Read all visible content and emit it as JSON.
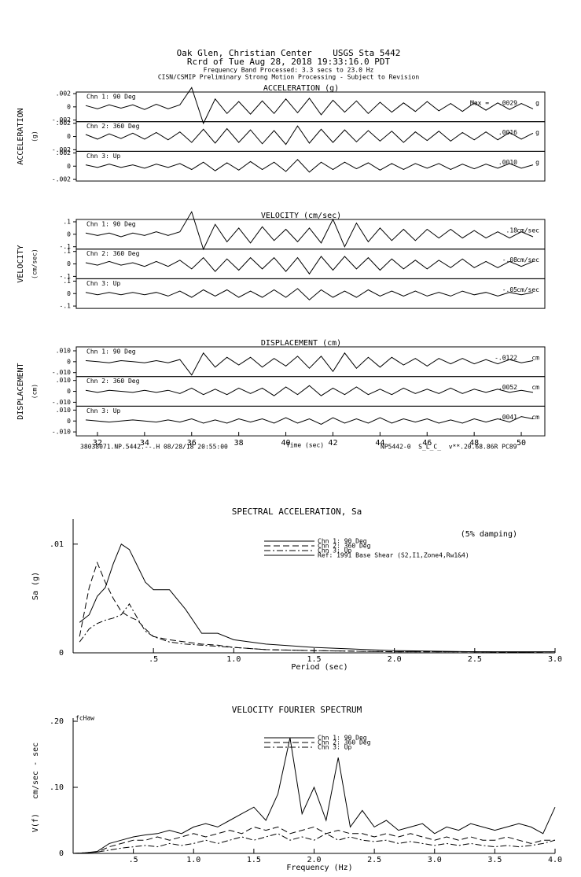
{
  "chart_data": [
    {
      "type": "waveform",
      "header": [
        "Oak Glen, Christian Center    USGS Sta 5442",
        "Rcrd of Tue Aug 28, 2018 19:33:16.0 PDT",
        "Frequency Band Processed: 3.3 secs to 23.0 Hz",
        "CISN/CSMIP Preliminary Strong Motion Processing - Subject to Revision"
      ],
      "x_label": "Time (sec)",
      "footer_left": "38038071.NP.5442.--.H 08/28/18 20:55:00",
      "footer_right": "NP5442-0  S_L_C_  v**.20.68.86R PC89",
      "max_label": "Max =",
      "xlim": [
        31.1,
        51
      ],
      "xticks": [
        32,
        34,
        36,
        38,
        40,
        42,
        44,
        46,
        48,
        50
      ],
      "x": [
        31.5,
        32,
        32.5,
        33,
        33.5,
        34,
        34.5,
        35,
        35.5,
        36,
        36.5,
        37,
        37.5,
        38,
        38.5,
        39,
        39.5,
        40,
        40.5,
        41,
        41.5,
        42,
        42.5,
        43,
        43.5,
        44,
        44.5,
        45,
        45.5,
        46,
        46.5,
        47,
        47.5,
        48,
        48.5,
        49,
        49.5,
        50,
        50.5
      ],
      "sections": [
        {
          "title": "ACCELERATION (g)",
          "y_label": "ACCELERATION",
          "y_unit": "(g)",
          "ylim": [
            -0.00224,
            0.00224
          ],
          "yticks": [
            {
              "value": 0.002,
              "label": ".002"
            },
            0,
            {
              "value": -0.002,
              "label": "-.002"
            }
          ],
          "panels": [
            {
              "name": "Chn 1: 90 Deg",
              "peak": 0.0029,
              "peak_label": ".0029",
              "units": "g",
              "values": [
                0.0002,
                -0.0003,
                0.0003,
                -0.0002,
                0.0003,
                -0.0004,
                0.0004,
                -0.0003,
                0.0003,
                0.0029,
                -0.0025,
                0.0012,
                -0.001,
                0.0008,
                -0.0011,
                0.0009,
                -0.001,
                0.0012,
                -0.0009,
                0.0013,
                -0.0012,
                0.001,
                -0.0008,
                0.0009,
                -0.001,
                0.0007,
                -0.0008,
                0.0006,
                -0.0007,
                0.0008,
                -0.0006,
                0.0005,
                -0.0007,
                0.0006,
                -0.0005,
                0.0006,
                -0.0004,
                0.0005,
                -0.0003
              ]
            },
            {
              "name": "Chn 2: 360 Deg",
              "peak": 0.0016,
              "peak_label": ".0016",
              "units": "g",
              "values": [
                0.0003,
                -0.0004,
                0.0004,
                -0.0003,
                0.0005,
                -0.0004,
                0.0006,
                -0.0005,
                0.0007,
                -0.0009,
                0.0011,
                -0.001,
                0.0012,
                -0.0009,
                0.001,
                -0.0011,
                0.0009,
                -0.0012,
                0.0016,
                -0.001,
                0.0011,
                -0.0009,
                0.001,
                -0.0008,
                0.0009,
                -0.0007,
                0.0008,
                -0.0009,
                0.0007,
                -0.0006,
                0.0008,
                -0.0007,
                0.0006,
                -0.0005,
                0.0007,
                -0.0005,
                0.0006,
                -0.0004,
                0.0005
              ]
            },
            {
              "name": "Chn 3: Up",
              "peak": 0.001,
              "peak_label": ".0010",
              "units": "g",
              "values": [
                0.0002,
                -0.0002,
                0.0003,
                -0.0002,
                0.0002,
                -0.0003,
                0.0003,
                -0.0002,
                0.0004,
                -0.0005,
                0.0006,
                -0.0007,
                0.0005,
                -0.0006,
                0.0007,
                -0.0005,
                0.0006,
                -0.0008,
                0.001,
                -0.0009,
                0.0006,
                -0.0005,
                0.0006,
                -0.0004,
                0.0005,
                -0.0006,
                0.0004,
                -0.0005,
                0.0004,
                -0.0003,
                0.0004,
                -0.0005,
                0.0003,
                -0.0004,
                0.0003,
                -0.0003,
                0.0004,
                -0.0003,
                0.0002
              ]
            }
          ]
        },
        {
          "title": "VELOCITY (cm/sec)",
          "y_label": "VELOCITY",
          "y_unit": "(cm/sec)",
          "ylim": [
            -0.119,
            0.119
          ],
          "yticks": [
            {
              "value": 0.1,
              "label": ".1"
            },
            0,
            {
              "value": -0.1,
              "label": "-.1"
            }
          ],
          "panels": [
            {
              "name": "Chn 1: 90 Deg",
              "peak": 0.18,
              "peak_label": ".18",
              "units": "cm/sec",
              "values": [
                0.01,
                -0.01,
                0.01,
                -0.02,
                0.01,
                -0.01,
                0.02,
                -0.01,
                0.02,
                0.18,
                -0.12,
                0.08,
                -0.06,
                0.05,
                -0.07,
                0.06,
                -0.05,
                0.04,
                -0.06,
                0.05,
                -0.07,
                0.12,
                -0.1,
                0.09,
                -0.06,
                0.05,
                -0.05,
                0.04,
                -0.05,
                0.04,
                -0.03,
                0.04,
                -0.03,
                0.03,
                -0.03,
                0.02,
                -0.03,
                0.02,
                -0.02
              ]
            },
            {
              "name": "Chn 2: 360 Deg",
              "peak": -0.08,
              "peak_label": "-.08",
              "units": "cm/sec",
              "values": [
                0.01,
                -0.01,
                0.02,
                -0.01,
                0.01,
                -0.02,
                0.02,
                -0.02,
                0.03,
                -0.04,
                0.05,
                -0.06,
                0.04,
                -0.05,
                0.05,
                -0.04,
                0.05,
                -0.06,
                0.05,
                -0.08,
                0.06,
                -0.05,
                0.06,
                -0.04,
                0.05,
                -0.05,
                0.04,
                -0.04,
                0.03,
                -0.04,
                0.03,
                -0.03,
                0.04,
                -0.03,
                0.02,
                -0.03,
                0.02,
                -0.02,
                0.02
              ]
            },
            {
              "name": "Chn 3: Up",
              "peak": -0.05,
              "peak_label": "-.05",
              "units": "cm/sec",
              "values": [
                0.01,
                -0.01,
                0.01,
                -0.01,
                0.01,
                -0.01,
                0.01,
                -0.02,
                0.02,
                -0.03,
                0.03,
                -0.02,
                0.03,
                -0.03,
                0.02,
                -0.03,
                0.03,
                -0.03,
                0.04,
                -0.05,
                0.03,
                -0.03,
                0.02,
                -0.03,
                0.03,
                -0.02,
                0.02,
                -0.02,
                0.02,
                -0.02,
                0.01,
                -0.02,
                0.02,
                -0.01,
                0.01,
                -0.02,
                0.01,
                -0.01,
                0.01
              ]
            }
          ]
        },
        {
          "title": "DISPLACEMENT (cm)",
          "y_label": "DISPLACEMENT",
          "y_unit": "(cm)",
          "ylim": [
            -0.0136,
            0.0136
          ],
          "yticks": [
            {
              "value": 0.01,
              "label": ".010"
            },
            0,
            {
              "value": -0.01,
              "label": "-.010"
            }
          ],
          "panels": [
            {
              "name": "Chn 1: 90 Deg",
              "peak": -0.0122,
              "peak_label": "-.0122",
              "units": "cm",
              "values": [
                0.001,
                0,
                -0.001,
                0.001,
                0,
                -0.001,
                0.001,
                -0.001,
                0.002,
                -0.0122,
                0.008,
                -0.005,
                0.004,
                -0.003,
                0.004,
                -0.005,
                0.003,
                -0.004,
                0.005,
                -0.006,
                0.005,
                -0.009,
                0.008,
                -0.006,
                0.004,
                -0.005,
                0.004,
                -0.003,
                0.003,
                -0.004,
                0.003,
                -0.002,
                0.003,
                -0.002,
                0.002,
                -0.002,
                0.002,
                -0.001,
                0.001
              ]
            },
            {
              "name": "Chn 2: 360 Deg",
              "peak": 0.0052,
              "peak_label": ".0052",
              "units": "cm",
              "values": [
                0.001,
                -0.001,
                0.001,
                0,
                -0.001,
                0.001,
                -0.001,
                0.001,
                -0.002,
                0.003,
                -0.003,
                0.002,
                -0.003,
                0.003,
                -0.002,
                0.003,
                -0.004,
                0.004,
                -0.003,
                0.0052,
                -0.004,
                0.003,
                -0.003,
                0.004,
                -0.003,
                0.002,
                -0.003,
                0.003,
                -0.002,
                0.002,
                -0.002,
                0.003,
                -0.002,
                0.002,
                -0.001,
                0.002,
                -0.001,
                0.001,
                -0.001
              ]
            },
            {
              "name": "Chn 3: Up",
              "peak": 0.0041,
              "peak_label": ".0041",
              "units": "cm",
              "values": [
                0.001,
                0,
                -0.001,
                0,
                0.001,
                0,
                -0.001,
                0.001,
                -0.001,
                0.002,
                -0.002,
                0.001,
                -0.002,
                0.002,
                -0.001,
                0.002,
                -0.002,
                0.003,
                -0.002,
                0.002,
                -0.003,
                0.003,
                -0.002,
                0.002,
                -0.002,
                0.003,
                -0.002,
                0.002,
                -0.001,
                0.002,
                -0.002,
                0.001,
                -0.002,
                0.002,
                -0.001,
                0.002,
                -0.001,
                0.0041,
                0.002
              ]
            }
          ]
        }
      ]
    },
    {
      "type": "line",
      "title": "SPECTRAL ACCELERATION, Sa",
      "x_label": "Period (sec)",
      "y_label": "Sa (g)",
      "annotation": "(5% damping)",
      "legend": "upper center",
      "xlim": [
        0,
        3
      ],
      "ylim": [
        0,
        0.0123
      ],
      "xticks": [
        {
          "value": 0.5,
          "label": ".5"
        },
        {
          "value": 1,
          "label": "1.0"
        },
        {
          "value": 1.5,
          "label": "1.5"
        },
        {
          "value": 2,
          "label": "2.0"
        },
        {
          "value": 2.5,
          "label": "2.5"
        },
        {
          "value": 3,
          "label": "3.0"
        }
      ],
      "yticks": [
        0,
        {
          "value": 0.01,
          "label": ".01"
        }
      ],
      "x": [
        0.04,
        0.1,
        0.15,
        0.2,
        0.25,
        0.3,
        0.35,
        0.4,
        0.45,
        0.5,
        0.6,
        0.7,
        0.8,
        0.9,
        1.0,
        1.2,
        1.5,
        2.0,
        2.5,
        3.0
      ],
      "series": [
        {
          "name": "Chn 1: 90 Deg",
          "color": "#000000",
          "style": "solid",
          "values": [
            0.0028,
            0.0035,
            0.0052,
            0.006,
            0.0082,
            0.01,
            0.0095,
            0.008,
            0.0065,
            0.0058,
            0.0058,
            0.004,
            0.0018,
            0.0018,
            0.0012,
            0.0008,
            0.0005,
            0.0002,
            0.0001,
            0.0001
          ]
        },
        {
          "name": "Chn 2: 360 Deg",
          "color": "#000000",
          "style": "dashed",
          "values": [
            0.0015,
            0.006,
            0.0083,
            0.0065,
            0.005,
            0.0038,
            0.0033,
            0.003,
            0.0022,
            0.0015,
            0.0012,
            0.001,
            0.0008,
            0.0007,
            0.0005,
            0.0003,
            0.0002,
            0.0001,
            0.0001,
            0
          ]
        },
        {
          "name": "Chn 3: Up",
          "color": "#000000",
          "style": "dashdot",
          "values": [
            0.001,
            0.0022,
            0.0027,
            0.003,
            0.0032,
            0.0035,
            0.0045,
            0.0032,
            0.002,
            0.0015,
            0.001,
            0.0008,
            0.0007,
            0.0006,
            0.0005,
            0.0003,
            0.0002,
            0.0001,
            0.0001,
            0
          ]
        }
      ],
      "reference": {
        "name": "Ref: 1991 Base Shear (S2,I1,Zone4,Rw1&4)",
        "color": "#000000",
        "style": "solid"
      }
    },
    {
      "type": "line",
      "title": "VELOCITY FOURIER SPECTRUM",
      "x_label": "Frequency (Hz)",
      "y_label": "V(f)   cm/sec - sec",
      "annotation": "fcHaw",
      "legend": "upper center",
      "xlim": [
        0,
        4
      ],
      "ylim": [
        0,
        0.2
      ],
      "xticks": [
        {
          "value": 0.5,
          "label": ".5"
        },
        {
          "value": 1,
          "label": "1.0"
        },
        {
          "value": 1.5,
          "label": "1.5"
        },
        {
          "value": 2,
          "label": "2.0"
        },
        {
          "value": 2.5,
          "label": "2.5"
        },
        {
          "value": 3,
          "label": "3.0"
        },
        {
          "value": 3.5,
          "label": "3.5"
        },
        {
          "value": 4,
          "label": "4.0"
        }
      ],
      "yticks": [
        0,
        {
          "value": 0.1,
          "label": ".10"
        },
        {
          "value": 0.2,
          "label": ".20"
        }
      ],
      "x": [
        0,
        0.1,
        0.2,
        0.3,
        0.4,
        0.5,
        0.6,
        0.7,
        0.8,
        0.9,
        1.0,
        1.1,
        1.2,
        1.3,
        1.4,
        1.5,
        1.6,
        1.7,
        1.8,
        1.9,
        2.0,
        2.1,
        2.2,
        2.3,
        2.4,
        2.5,
        2.6,
        2.7,
        2.8,
        2.9,
        3.0,
        3.1,
        3.2,
        3.3,
        3.4,
        3.5,
        3.6,
        3.7,
        3.8,
        3.9,
        4.0
      ],
      "series": [
        {
          "name": "Chn 1: 90 Deg",
          "color": "#000000",
          "style": "solid",
          "values": [
            0,
            0.001,
            0.003,
            0.015,
            0.02,
            0.025,
            0.028,
            0.03,
            0.035,
            0.03,
            0.04,
            0.045,
            0.04,
            0.05,
            0.06,
            0.07,
            0.05,
            0.09,
            0.175,
            0.06,
            0.1,
            0.05,
            0.145,
            0.04,
            0.065,
            0.04,
            0.05,
            0.035,
            0.04,
            0.045,
            0.03,
            0.04,
            0.035,
            0.045,
            0.04,
            0.035,
            0.04,
            0.045,
            0.04,
            0.03,
            0.07
          ]
        },
        {
          "name": "Chn 2: 360 Deg",
          "color": "#000000",
          "style": "dashed",
          "values": [
            0,
            0.001,
            0.002,
            0.01,
            0.015,
            0.02,
            0.02,
            0.025,
            0.02,
            0.025,
            0.03,
            0.025,
            0.03,
            0.035,
            0.03,
            0.04,
            0.035,
            0.04,
            0.03,
            0.035,
            0.04,
            0.03,
            0.035,
            0.03,
            0.03,
            0.025,
            0.03,
            0.025,
            0.03,
            0.025,
            0.02,
            0.025,
            0.02,
            0.025,
            0.02,
            0.02,
            0.025,
            0.02,
            0.015,
            0.02,
            0.02
          ]
        },
        {
          "name": "Chn 3: Up",
          "color": "#000000",
          "style": "dashdot",
          "values": [
            0,
            0.001,
            0.002,
            0.005,
            0.008,
            0.01,
            0.012,
            0.01,
            0.015,
            0.012,
            0.015,
            0.02,
            0.015,
            0.02,
            0.025,
            0.02,
            0.025,
            0.03,
            0.02,
            0.025,
            0.02,
            0.03,
            0.02,
            0.025,
            0.02,
            0.018,
            0.02,
            0.015,
            0.018,
            0.015,
            0.012,
            0.015,
            0.012,
            0.015,
            0.012,
            0.01,
            0.012,
            0.01,
            0.012,
            0.015,
            0.02
          ]
        }
      ]
    }
  ]
}
